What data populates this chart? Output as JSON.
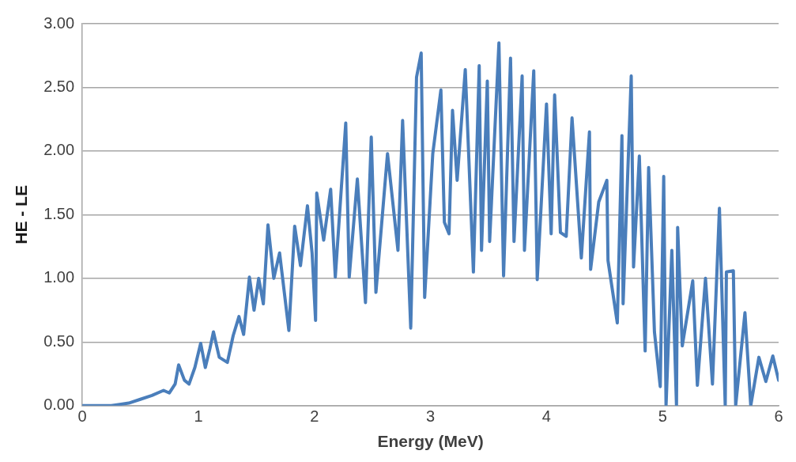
{
  "chart_data": {
    "type": "line",
    "xlabel": "Energy (MeV)",
    "ylabel": "HE - LE",
    "xlim": [
      0,
      6
    ],
    "xticks": [
      0,
      1,
      2,
      3,
      4,
      5,
      6
    ],
    "ylim": [
      0,
      3
    ],
    "yticks": [
      {
        "value": 0,
        "label": "0.00"
      },
      {
        "value": 0.5,
        "label": "0.50"
      },
      {
        "value": 1,
        "label": "1.00"
      },
      {
        "value": 1.5,
        "label": "1.50"
      },
      {
        "value": 2,
        "label": "2.00"
      },
      {
        "value": 2.5,
        "label": "2.50"
      },
      {
        "value": 3,
        "label": "3.00"
      }
    ],
    "grid": "y",
    "legend": false,
    "marker": "none",
    "line_style": "solid",
    "series": [
      {
        "color": "#4a7ebb",
        "x": [
          0,
          0.25,
          0.4,
          0.5,
          0.6,
          0.7,
          0.75,
          0.8,
          0.83,
          0.88,
          0.92,
          0.97,
          1.02,
          1.06,
          1.1,
          1.13,
          1.18,
          1.25,
          1.3,
          1.35,
          1.39,
          1.44,
          1.48,
          1.52,
          1.56,
          1.6,
          1.65,
          1.7,
          1.78,
          1.83,
          1.88,
          1.94,
          1.98,
          2.01,
          2.02,
          2.08,
          2.14,
          2.18,
          2.27,
          2.3,
          2.37,
          2.44,
          2.49,
          2.53,
          2.63,
          2.72,
          2.76,
          2.83,
          2.88,
          2.92,
          2.95,
          3.02,
          3.09,
          3.12,
          3.16,
          3.19,
          3.23,
          3.3,
          3.37,
          3.42,
          3.44,
          3.49,
          3.51,
          3.59,
          3.63,
          3.69,
          3.72,
          3.79,
          3.81,
          3.89,
          3.92,
          4.0,
          4.04,
          4.07,
          4.12,
          4.17,
          4.22,
          4.3,
          4.37,
          4.38,
          4.45,
          4.52,
          4.53,
          4.61,
          4.65,
          4.66,
          4.73,
          4.75,
          4.8,
          4.85,
          4.88,
          4.93,
          4.98,
          5.01,
          5.03,
          5.08,
          5.12,
          5.13,
          5.17,
          5.26,
          5.3,
          5.37,
          5.43,
          5.49,
          5.54,
          5.55,
          5.61,
          5.63,
          5.71,
          5.76,
          5.83,
          5.89,
          5.95,
          6.0
        ],
        "values": [
          0,
          0,
          0.02,
          0.05,
          0.08,
          0.12,
          0.1,
          0.17,
          0.32,
          0.2,
          0.17,
          0.3,
          0.49,
          0.3,
          0.45,
          0.58,
          0.38,
          0.34,
          0.55,
          0.7,
          0.56,
          1.01,
          0.75,
          1.0,
          0.8,
          1.42,
          1.0,
          1.2,
          0.59,
          1.41,
          1.1,
          1.57,
          1.2,
          0.67,
          1.67,
          1.3,
          1.7,
          1.01,
          2.22,
          1.01,
          1.78,
          0.81,
          2.11,
          0.89,
          1.98,
          1.22,
          2.24,
          0.61,
          2.58,
          2.77,
          0.85,
          1.98,
          2.48,
          1.44,
          1.35,
          2.32,
          1.77,
          2.64,
          1.05,
          2.67,
          1.22,
          2.55,
          1.29,
          2.85,
          1.02,
          2.73,
          1.29,
          2.59,
          1.22,
          2.63,
          0.99,
          2.37,
          1.35,
          2.44,
          1.36,
          1.33,
          2.26,
          1.16,
          2.15,
          1.07,
          1.6,
          1.77,
          1.14,
          0.65,
          2.12,
          0.8,
          2.59,
          1.09,
          1.96,
          0.43,
          1.87,
          0.58,
          0.15,
          1.8,
          0,
          1.22,
          0,
          1.4,
          0.47,
          0.98,
          0.16,
          1.0,
          0.17,
          1.55,
          0,
          1.05,
          1.06,
          0,
          0.73,
          0,
          0.38,
          0.19,
          0.39,
          0.2
        ]
      }
    ]
  }
}
